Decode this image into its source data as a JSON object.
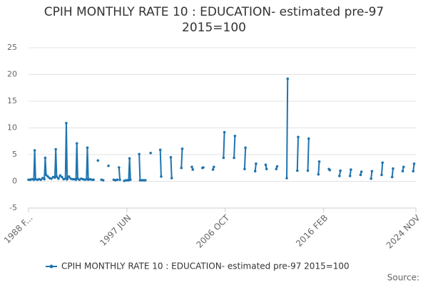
{
  "chart_data": {
    "type": "line",
    "title": "CPIH MONTHLY RATE 10 : EDUCATION- estimated pre-97 2015=100",
    "source": "Source:",
    "xlim": [
      "1988-02",
      "2024-11"
    ],
    "xticks": [
      {
        "value": "1988-02",
        "label": "1988 F..."
      },
      {
        "value": "1997-06",
        "label": "1997 JUN"
      },
      {
        "value": "2006-10",
        "label": "2006 OCT"
      },
      {
        "value": "2016-02",
        "label": "2016 FEB"
      },
      {
        "value": "2024-11",
        "label": "2024 NOV"
      }
    ],
    "ylim": [
      -5,
      25
    ],
    "yticks": [
      -5,
      0,
      5,
      10,
      15,
      20,
      25
    ],
    "grid": true,
    "legend": "bottom",
    "x": [
      "1988-02",
      "1988-04",
      "1988-06",
      "1988-08",
      "1988-09",
      "1988-10",
      "1988-12",
      "1989-02",
      "1989-04",
      "1989-06",
      "1989-08",
      "1989-09",
      "1989-10",
      "1989-12",
      "1990-02",
      "1990-04",
      "1990-06",
      "1990-08",
      "1990-09",
      "1990-10",
      "1990-12",
      "1991-02",
      "1991-04",
      "1991-06",
      "1991-08",
      "1991-09",
      "1991-10",
      "1991-12",
      "1992-02",
      "1992-04",
      "1992-06",
      "1992-08",
      "1992-09",
      "1992-10",
      "1992-12",
      "1993-02",
      "1993-04",
      "1993-06",
      "1993-08",
      "1993-09",
      "1993-10",
      "1993-12",
      "1994-02",
      "1994-04",
      "1994-05",
      "1994-09",
      "1994-10",
      "1995-01",
      "1995-03",
      "1995-04",
      "1995-09",
      "1995-10",
      "1996-03",
      "1996-05",
      "1996-07",
      "1996-08",
      "1996-09",
      "1996-10",
      "1996-11",
      "1997-03",
      "1997-05",
      "1997-07",
      "1997-08",
      "1997-09",
      "1997-10",
      "1997-11",
      "1998-08",
      "1998-09",
      "1998-11",
      "1999-01",
      "1999-03",
      "1999-04",
      "1999-09",
      "1999-10",
      "2000-08",
      "2000-09",
      "2000-10",
      "2001-08",
      "2001-09",
      "2001-10",
      "2002-08",
      "2002-09",
      "2002-10",
      "2003-08",
      "2003-09",
      "2003-10",
      "2004-08",
      "2004-09",
      "2004-10",
      "2005-08",
      "2005-09",
      "2005-10",
      "2006-08",
      "2006-09",
      "2006-10",
      "2007-08",
      "2007-09",
      "2007-10",
      "2008-08",
      "2008-09",
      "2008-10",
      "2009-08",
      "2009-09",
      "2009-10",
      "2010-08",
      "2010-09",
      "2010-10",
      "2011-08",
      "2011-09",
      "2011-10",
      "2012-08",
      "2012-09",
      "2012-10",
      "2013-08",
      "2013-09",
      "2013-10",
      "2014-08",
      "2014-09",
      "2014-10",
      "2015-08",
      "2015-09",
      "2015-10",
      "2016-08",
      "2016-09",
      "2016-10",
      "2017-08",
      "2017-09",
      "2017-10",
      "2018-08",
      "2018-09",
      "2018-10",
      "2019-08",
      "2019-09",
      "2019-10",
      "2020-08",
      "2020-09",
      "2020-10",
      "2021-08",
      "2021-09",
      "2021-10",
      "2022-08",
      "2022-09",
      "2022-10",
      "2023-08",
      "2023-09",
      "2023-10",
      "2024-08",
      "2024-09"
    ],
    "series": [
      {
        "name": "CPIH MONTHLY RATE 10 : EDUCATION- estimated pre-97 2015=100",
        "color": "#1f74b0",
        "values": [
          0.3,
          0.3,
          0.4,
          0.3,
          5.8,
          0.4,
          0.3,
          0.4,
          0.3,
          0.6,
          0.4,
          4.4,
          1.2,
          0.9,
          0.6,
          0.5,
          0.8,
          0.7,
          6.0,
          0.9,
          0.5,
          1.1,
          0.8,
          0.4,
          0.5,
          10.9,
          0.4,
          0.9,
          0.5,
          0.4,
          0.4,
          0.3,
          7.1,
          0.5,
          0.3,
          0.5,
          0.4,
          0.3,
          0.4,
          6.3,
          0.3,
          0.4,
          0.3,
          0.3,
          null,
          3.9,
          null,
          0.3,
          0.2,
          null,
          2.9,
          null,
          0.3,
          0.2,
          0.3,
          null,
          2.6,
          0.3,
          null,
          0.1,
          0.2,
          0.2,
          0.2,
          4.3,
          0.3,
          null,
          5.1,
          0.2,
          0.2,
          0.2,
          0.2,
          null,
          5.3,
          null,
          5.9,
          0.9,
          null,
          4.5,
          0.6,
          null,
          2.5,
          6.1,
          null,
          2.7,
          2.2,
          null,
          2.5,
          2.6,
          null,
          2.2,
          2.7,
          null,
          4.4,
          9.2,
          null,
          4.4,
          8.5,
          null,
          2.3,
          6.3,
          null,
          1.9,
          3.3,
          null,
          3.1,
          2.3,
          null,
          2.3,
          2.8,
          null,
          0.6,
          19.2,
          null,
          2.0,
          8.3,
          null,
          2.0,
          8.0,
          null,
          1.3,
          3.7,
          null,
          2.3,
          2.1,
          null,
          1.0,
          2.0,
          null,
          1.0,
          2.2,
          null,
          1.2,
          1.8,
          null,
          0.5,
          1.9,
          null,
          1.2,
          3.5,
          null,
          0.8,
          2.4,
          null,
          1.9,
          2.7,
          null,
          1.9,
          3.3
        ]
      }
    ]
  }
}
